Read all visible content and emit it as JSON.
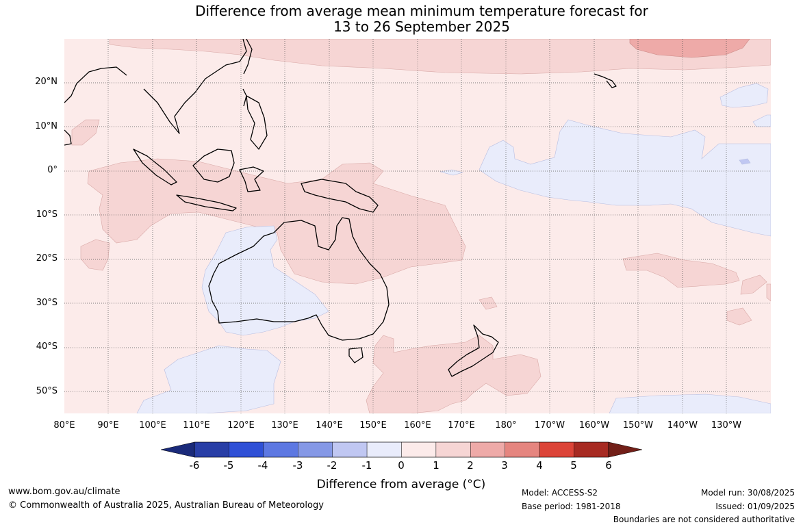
{
  "title": {
    "line1": "Difference from average mean minimum temperature forecast for",
    "line2": "13 to 26 September 2025"
  },
  "map": {
    "lon_labels": [
      "80°E",
      "90°E",
      "100°E",
      "110°E",
      "120°E",
      "130°E",
      "140°E",
      "150°E",
      "160°E",
      "170°E",
      "180°",
      "170°W",
      "160°W",
      "150°W",
      "140°W",
      "130°W"
    ],
    "lat_labels": [
      "20°N",
      "10°N",
      "0°",
      "10°S",
      "20°S",
      "30°S",
      "40°S",
      "50°S"
    ],
    "lon_range": [
      80,
      235
    ],
    "lat_range": [
      -55,
      30
    ]
  },
  "colorbar": {
    "ticks": [
      "-6",
      "-5",
      "-4",
      "-3",
      "-2",
      "-1",
      "0",
      "1",
      "2",
      "3",
      "4",
      "5",
      "6"
    ],
    "colors": [
      "#283ea6",
      "#2f50d6",
      "#5d78e2",
      "#8598e6",
      "#c0c7f2",
      "#e9ecfb",
      "#fcebea",
      "#f6d5d4",
      "#eeaaa8",
      "#e5857f",
      "#dc4438",
      "#a72a22"
    ],
    "low_extend_color": "#1a2a7a",
    "high_extend_color": "#721f18",
    "label": "Difference from average (°C)"
  },
  "footer": {
    "website": "www.bom.gov.au/climate",
    "copyright": "© Commonwealth of Australia 2025, Australian Bureau of Meteorology",
    "model": "Model: ACCESS-S2",
    "base_period": "Base period: 1981-2018",
    "model_run": "Model run: 30/08/2025",
    "issued": "Issued: 01/09/2025",
    "disclaimer": "Boundaries are not considered authoritative"
  }
}
